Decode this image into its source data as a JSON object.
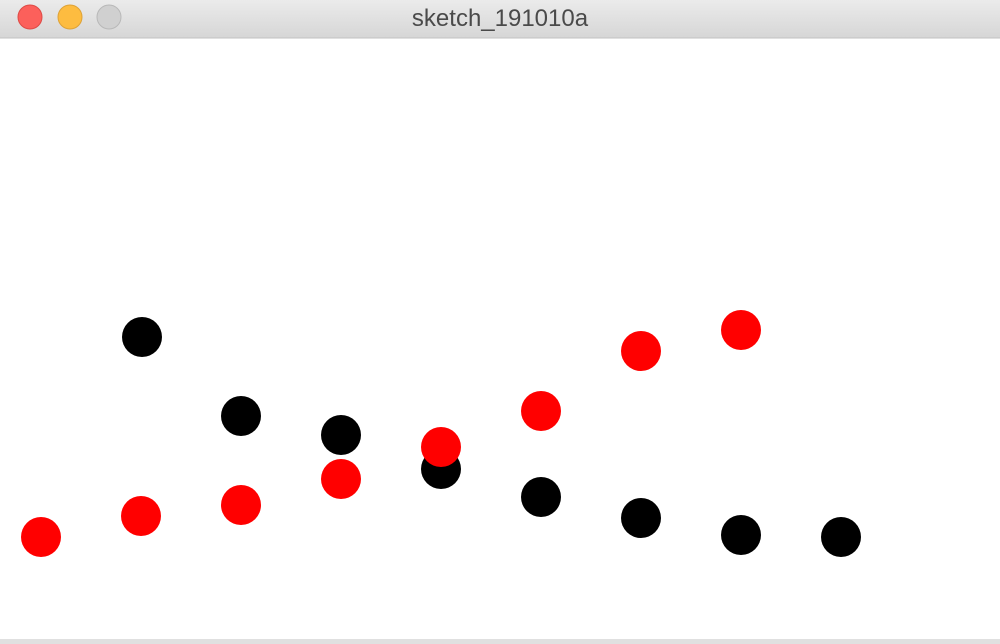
{
  "window": {
    "title": "sketch_191010a"
  }
}
